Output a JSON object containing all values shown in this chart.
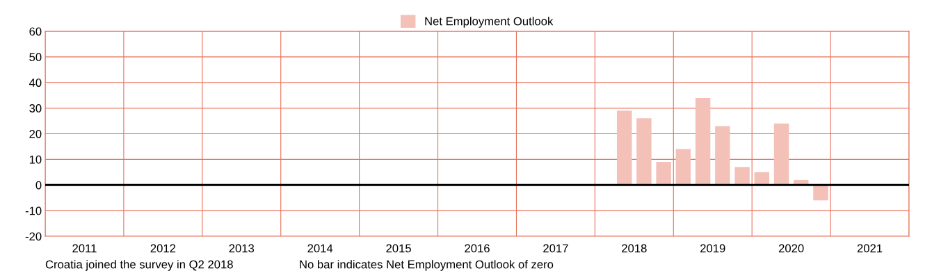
{
  "chart_data": {
    "type": "bar",
    "x": [
      2018.375,
      2018.625,
      2018.875,
      2019.125,
      2019.375,
      2019.625,
      2019.875,
      2020.125,
      2020.375,
      2020.625,
      2020.875
    ],
    "series": [
      {
        "name": "Net Employment Outlook",
        "color": "#f3c1b8",
        "values": [
          29,
          26,
          9,
          14,
          34,
          23,
          7,
          5,
          24,
          2,
          -6
        ]
      }
    ],
    "xlim": [
      2011,
      2022
    ],
    "xticks": [
      {
        "value": 2011,
        "label": null
      },
      {
        "value": 2012,
        "label": null
      },
      {
        "value": 2013,
        "label": null
      },
      {
        "value": 2014,
        "label": null
      },
      {
        "value": 2015,
        "label": null
      },
      {
        "value": 2016,
        "label": null
      },
      {
        "value": 2017,
        "label": null
      },
      {
        "value": 2018,
        "label": null
      },
      {
        "value": 2019,
        "label": null
      },
      {
        "value": 2020,
        "label": null
      },
      {
        "value": 2021,
        "label": null
      },
      {
        "value": 2022,
        "label": null
      },
      {
        "value": 2011.5,
        "label": "2011"
      },
      {
        "value": 2012.5,
        "label": "2012"
      },
      {
        "value": 2013.5,
        "label": "2013"
      },
      {
        "value": 2014.5,
        "label": "2014"
      },
      {
        "value": 2015.5,
        "label": "2015"
      },
      {
        "value": 2016.5,
        "label": "2016"
      },
      {
        "value": 2017.5,
        "label": "2017"
      },
      {
        "value": 2018.5,
        "label": "2018"
      },
      {
        "value": 2019.5,
        "label": "2019"
      },
      {
        "value": 2020.5,
        "label": "2020"
      },
      {
        "value": 2021.5,
        "label": "2021"
      }
    ],
    "ylim": [
      -20,
      60
    ],
    "yticks": [
      -20,
      -10,
      0,
      10,
      20,
      30,
      40,
      50,
      60
    ],
    "grid": true,
    "legend": "top",
    "ref_lines": [
      {
        "axis": "y",
        "value": 0,
        "color": "#000000"
      }
    ],
    "annotations": [
      "Croatia joined the survey in Q2 2018",
      "No bar indicates Net Employment Outlook of zero"
    ]
  }
}
